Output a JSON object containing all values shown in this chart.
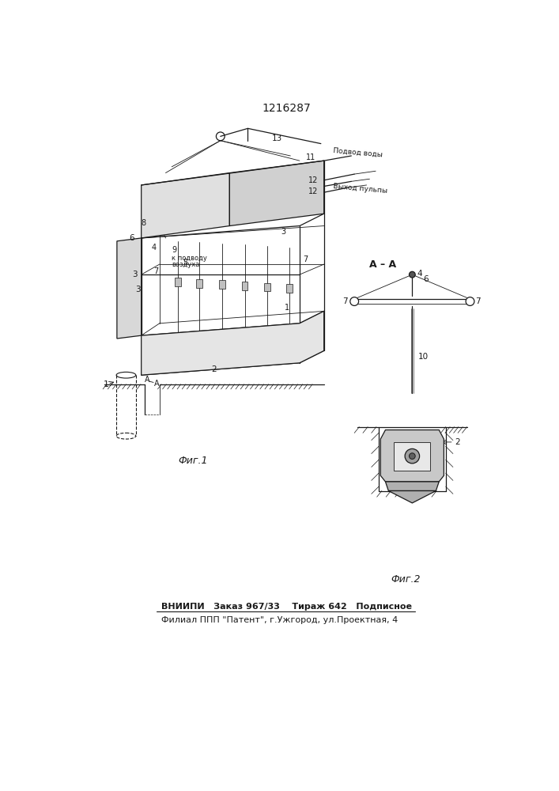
{
  "title": "1216287",
  "bg_color": "#ffffff",
  "line_color": "#1a1a1a",
  "bottom_line1": "ВНИИПИ   Заказ 967/33    Тираж 642   Подписное",
  "bottom_line2": "Филиал ППП \"Патент\", г.Ужгород, ул.Проектная, 4"
}
